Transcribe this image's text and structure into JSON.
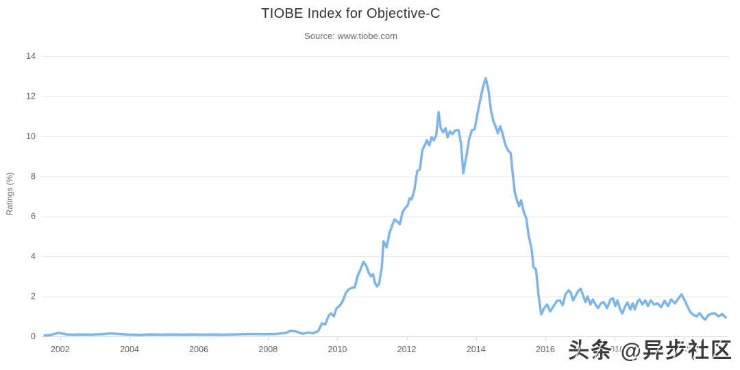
{
  "chart": {
    "title": "TIOBE Index for Objective-C",
    "subtitle": "Source: www.tiobe.com",
    "ylabel": "Ratings (%)"
  },
  "watermark": {
    "text": "头条 @异步社区"
  },
  "colors": {
    "line": "#7cb5ec",
    "grid": "#e6e6e6",
    "axis": "#ccd6eb",
    "tick_label": "#606060",
    "title": "#333333",
    "subtitle": "#666666"
  },
  "chart_data": {
    "type": "line",
    "title": "TIOBE Index for Objective-C",
    "subtitle": "Source: www.tiobe.com",
    "xlabel": "",
    "ylabel": "Ratings (%)",
    "ylim": [
      0,
      14
    ],
    "xlim": [
      2001.45,
      2021.3
    ],
    "yticks": [
      0,
      2,
      4,
      6,
      8,
      10,
      12,
      14
    ],
    "xticks": [
      2002,
      2004,
      2006,
      2008,
      2010,
      2012,
      2014,
      2016,
      2018,
      2020
    ],
    "xtick_labels": [
      "2002",
      "2004",
      "2006",
      "2008",
      "2010",
      "2012",
      "2014",
      "2016",
      "2018",
      "2020"
    ],
    "grid": true,
    "legend_position": "none",
    "series": [
      {
        "name": "Objective-C",
        "color": "#7cb5ec",
        "points": [
          [
            2001.55,
            0.05
          ],
          [
            2001.7,
            0.07
          ],
          [
            2001.85,
            0.13
          ],
          [
            2001.95,
            0.18
          ],
          [
            2002.05,
            0.15
          ],
          [
            2002.2,
            0.1
          ],
          [
            2002.4,
            0.09
          ],
          [
            2002.6,
            0.1
          ],
          [
            2002.9,
            0.09
          ],
          [
            2003.2,
            0.11
          ],
          [
            2003.45,
            0.15
          ],
          [
            2003.7,
            0.12
          ],
          [
            2004,
            0.09
          ],
          [
            2004.3,
            0.08
          ],
          [
            2004.6,
            0.1
          ],
          [
            2004.9,
            0.09
          ],
          [
            2005.2,
            0.1
          ],
          [
            2005.5,
            0.09
          ],
          [
            2005.8,
            0.1
          ],
          [
            2006.1,
            0.09
          ],
          [
            2006.4,
            0.1
          ],
          [
            2006.7,
            0.09
          ],
          [
            2007,
            0.1
          ],
          [
            2007.3,
            0.11
          ],
          [
            2007.6,
            0.12
          ],
          [
            2007.9,
            0.11
          ],
          [
            2008.2,
            0.12
          ],
          [
            2008.5,
            0.17
          ],
          [
            2008.65,
            0.28
          ],
          [
            2008.8,
            0.25
          ],
          [
            2009,
            0.13
          ],
          [
            2009.15,
            0.2
          ],
          [
            2009.3,
            0.16
          ],
          [
            2009.45,
            0.27
          ],
          [
            2009.55,
            0.65
          ],
          [
            2009.65,
            0.6
          ],
          [
            2009.75,
            1.05
          ],
          [
            2009.82,
            1.15
          ],
          [
            2009.9,
            1
          ],
          [
            2009.97,
            1.4
          ],
          [
            2010.05,
            1.5
          ],
          [
            2010.15,
            1.75
          ],
          [
            2010.25,
            2.2
          ],
          [
            2010.33,
            2.36
          ],
          [
            2010.42,
            2.43
          ],
          [
            2010.5,
            2.45
          ],
          [
            2010.58,
            3
          ],
          [
            2010.67,
            3.36
          ],
          [
            2010.75,
            3.72
          ],
          [
            2010.83,
            3.55
          ],
          [
            2010.9,
            3.18
          ],
          [
            2010.97,
            3
          ],
          [
            2011.03,
            3.1
          ],
          [
            2011.08,
            2.7
          ],
          [
            2011.14,
            2.5
          ],
          [
            2011.2,
            2.6
          ],
          [
            2011.28,
            3.45
          ],
          [
            2011.33,
            4.75
          ],
          [
            2011.42,
            4.45
          ],
          [
            2011.5,
            5.15
          ],
          [
            2011.58,
            5.55
          ],
          [
            2011.65,
            5.85
          ],
          [
            2011.75,
            5.7
          ],
          [
            2011.8,
            5.6
          ],
          [
            2011.88,
            6.2
          ],
          [
            2011.95,
            6.4
          ],
          [
            2012.03,
            6.55
          ],
          [
            2012.08,
            6.9
          ],
          [
            2012.14,
            6.85
          ],
          [
            2012.22,
            7.3
          ],
          [
            2012.3,
            8.25
          ],
          [
            2012.38,
            8.35
          ],
          [
            2012.45,
            9.3
          ],
          [
            2012.52,
            9.55
          ],
          [
            2012.58,
            9.8
          ],
          [
            2012.65,
            9.55
          ],
          [
            2012.72,
            9.95
          ],
          [
            2012.78,
            9.8
          ],
          [
            2012.85,
            10.05
          ],
          [
            2012.92,
            11.2
          ],
          [
            2012.98,
            10.4
          ],
          [
            2013.05,
            10.2
          ],
          [
            2013.12,
            10.4
          ],
          [
            2013.18,
            9.95
          ],
          [
            2013.25,
            10.25
          ],
          [
            2013.32,
            10.1
          ],
          [
            2013.4,
            10.3
          ],
          [
            2013.5,
            10.3
          ],
          [
            2013.57,
            9.6
          ],
          [
            2013.63,
            8.15
          ],
          [
            2013.72,
            9
          ],
          [
            2013.8,
            9.85
          ],
          [
            2013.88,
            10.3
          ],
          [
            2013.96,
            10.35
          ],
          [
            2014.05,
            11.2
          ],
          [
            2014.12,
            11.8
          ],
          [
            2014.2,
            12.45
          ],
          [
            2014.28,
            12.9
          ],
          [
            2014.36,
            12.3
          ],
          [
            2014.43,
            11.3
          ],
          [
            2014.5,
            10.75
          ],
          [
            2014.56,
            10.5
          ],
          [
            2014.63,
            10.15
          ],
          [
            2014.7,
            10.5
          ],
          [
            2014.77,
            10.1
          ],
          [
            2014.84,
            9.6
          ],
          [
            2014.92,
            9.3
          ],
          [
            2015,
            9.15
          ],
          [
            2015.06,
            8.1
          ],
          [
            2015.12,
            7.2
          ],
          [
            2015.18,
            6.8
          ],
          [
            2015.24,
            6.5
          ],
          [
            2015.3,
            6.8
          ],
          [
            2015.38,
            6.2
          ],
          [
            2015.45,
            5.9
          ],
          [
            2015.52,
            5
          ],
          [
            2015.6,
            4.4
          ],
          [
            2015.66,
            3.45
          ],
          [
            2015.73,
            3.35
          ],
          [
            2015.8,
            2.1
          ],
          [
            2015.88,
            1.1
          ],
          [
            2015.96,
            1.4
          ],
          [
            2016.05,
            1.6
          ],
          [
            2016.14,
            1.25
          ],
          [
            2016.25,
            1.55
          ],
          [
            2016.34,
            1.78
          ],
          [
            2016.42,
            1.8
          ],
          [
            2016.5,
            1.55
          ],
          [
            2016.58,
            2.1
          ],
          [
            2016.67,
            2.3
          ],
          [
            2016.73,
            2.2
          ],
          [
            2016.8,
            1.8
          ],
          [
            2016.88,
            2.05
          ],
          [
            2016.95,
            2.28
          ],
          [
            2017.02,
            2.38
          ],
          [
            2017.1,
            2
          ],
          [
            2017.16,
            1.72
          ],
          [
            2017.22,
            2
          ],
          [
            2017.3,
            1.6
          ],
          [
            2017.37,
            1.85
          ],
          [
            2017.45,
            1.58
          ],
          [
            2017.52,
            1.42
          ],
          [
            2017.6,
            1.65
          ],
          [
            2017.68,
            1.72
          ],
          [
            2017.78,
            1.42
          ],
          [
            2017.88,
            1.85
          ],
          [
            2017.95,
            1.9
          ],
          [
            2018.02,
            1.52
          ],
          [
            2018.08,
            1.8
          ],
          [
            2018.16,
            1.35
          ],
          [
            2018.22,
            1.15
          ],
          [
            2018.3,
            1.5
          ],
          [
            2018.37,
            1.7
          ],
          [
            2018.45,
            1.35
          ],
          [
            2018.52,
            1.65
          ],
          [
            2018.58,
            1.35
          ],
          [
            2018.66,
            1.75
          ],
          [
            2018.72,
            1.85
          ],
          [
            2018.8,
            1.6
          ],
          [
            2018.88,
            1.8
          ],
          [
            2018.96,
            1.52
          ],
          [
            2019.04,
            1.8
          ],
          [
            2019.14,
            1.6
          ],
          [
            2019.24,
            1.65
          ],
          [
            2019.34,
            1.45
          ],
          [
            2019.44,
            1.78
          ],
          [
            2019.54,
            1.52
          ],
          [
            2019.63,
            1.85
          ],
          [
            2019.74,
            1.65
          ],
          [
            2019.84,
            1.9
          ],
          [
            2019.93,
            2.1
          ],
          [
            2020.02,
            1.8
          ],
          [
            2020.1,
            1.5
          ],
          [
            2020.18,
            1.22
          ],
          [
            2020.27,
            1.08
          ],
          [
            2020.36,
            1
          ],
          [
            2020.45,
            1.16
          ],
          [
            2020.54,
            0.95
          ],
          [
            2020.61,
            0.84
          ],
          [
            2020.7,
            1.06
          ],
          [
            2020.8,
            1.14
          ],
          [
            2020.9,
            1.15
          ],
          [
            2021,
            1
          ],
          [
            2021.1,
            1.12
          ],
          [
            2021.2,
            0.95
          ]
        ]
      }
    ]
  }
}
